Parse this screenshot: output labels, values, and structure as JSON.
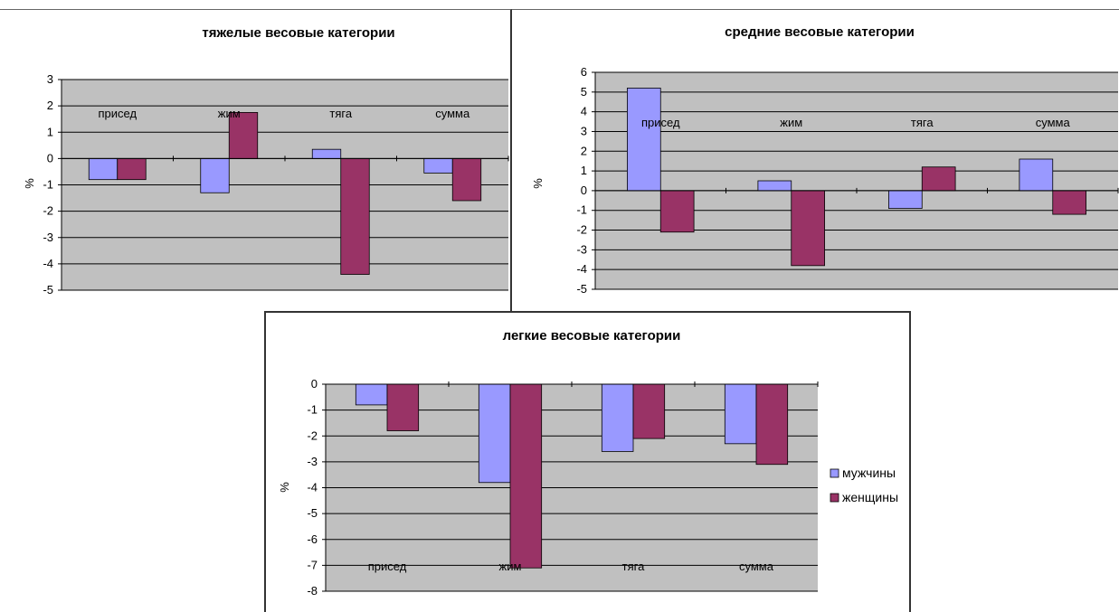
{
  "chart_data": [
    {
      "id": "heavy",
      "type": "bar",
      "title": "тяжелые весовые категории",
      "ylabel": "%",
      "ylim": [
        -5,
        3
      ],
      "yticks": [
        "3",
        "2",
        "1",
        "0",
        "-1",
        "-2",
        "-3",
        "-4",
        "-5"
      ],
      "categories": [
        "присед",
        "жим",
        "тяга",
        "сумма"
      ],
      "series": [
        {
          "name": "мужчины",
          "values": [
            -0.8,
            -1.3,
            0.35,
            -0.55
          ]
        },
        {
          "name": "женщины",
          "values": [
            -0.8,
            1.75,
            -4.4,
            -1.6
          ]
        }
      ],
      "grid": true,
      "legend": "none"
    },
    {
      "id": "medium",
      "type": "bar",
      "title": "средние весовые категории",
      "ylabel": "%",
      "ylim": [
        -5,
        6
      ],
      "yticks": [
        "6",
        "5",
        "4",
        "3",
        "2",
        "1",
        "0",
        "-1",
        "-2",
        "-3",
        "-4",
        "-5"
      ],
      "categories": [
        "присед",
        "жим",
        "тяга",
        "сумма"
      ],
      "series": [
        {
          "name": "мужчины",
          "values": [
            5.2,
            0.5,
            -0.9,
            1.6
          ]
        },
        {
          "name": "женщины",
          "values": [
            -2.1,
            -3.8,
            1.2,
            -1.2
          ]
        }
      ],
      "grid": true,
      "legend": "none"
    },
    {
      "id": "light",
      "type": "bar",
      "title": "легкие весовые категории",
      "ylabel": "%",
      "ylim": [
        -8,
        0
      ],
      "yticks": [
        "0",
        "-1",
        "-2",
        "-3",
        "-4",
        "-5",
        "-6",
        "-7",
        "-8"
      ],
      "categories": [
        "присед",
        "жим",
        "тяга",
        "сумма"
      ],
      "series": [
        {
          "name": "мужчины",
          "values": [
            -0.8,
            -3.8,
            -2.6,
            -2.3
          ]
        },
        {
          "name": "женщины",
          "values": [
            -1.8,
            -7.1,
            -2.1,
            -3.1
          ]
        }
      ],
      "grid": true,
      "legend": "right"
    }
  ],
  "colors": {
    "men": "#9999ff",
    "women": "#993366",
    "plot_bg": "#c0c0c0",
    "grid": "#000000"
  }
}
